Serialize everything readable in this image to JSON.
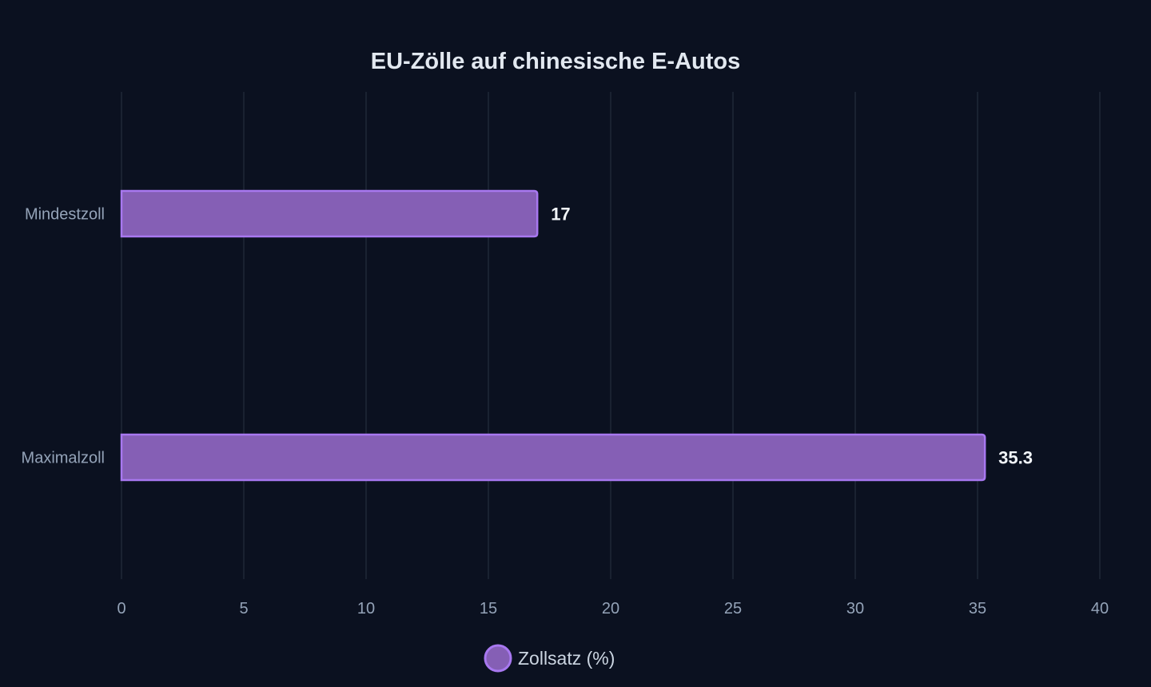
{
  "chart_data": {
    "type": "bar",
    "orientation": "horizontal",
    "title": "EU-Zölle auf chinesische E-Autos",
    "categories": [
      "Mindestzoll",
      "Maximalzoll"
    ],
    "series": [
      {
        "name": "Zollsatz (%)",
        "values": [
          17,
          35.3
        ],
        "color": "#8b5cf6",
        "fill": "#855fb5",
        "border": "#a878f0"
      }
    ],
    "xlim": [
      0,
      40
    ],
    "xticks": [
      0,
      5,
      10,
      15,
      20,
      25,
      30,
      35,
      40
    ],
    "grid": true,
    "legend_position": "bottom-center",
    "data_labels": [
      "17",
      "35.3"
    ]
  }
}
